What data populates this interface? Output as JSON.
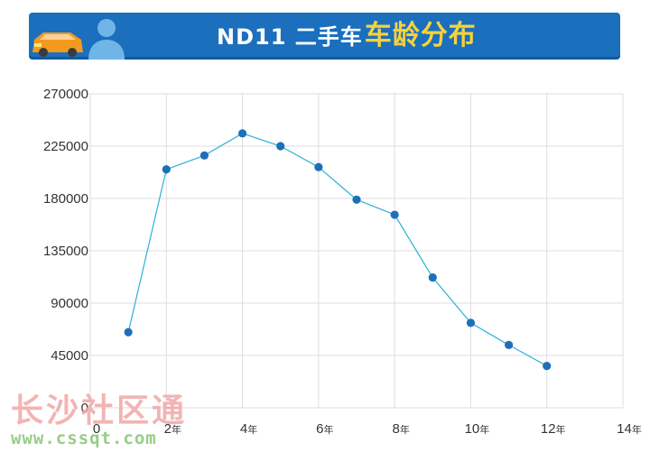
{
  "header": {
    "title_prefix": "ND11 二手车",
    "title_highlight": "车龄分布",
    "icon": "car-and-user-icon"
  },
  "colors": {
    "banner": "#1b6fbd",
    "highlight": "#f6d23b",
    "line": "#2ab0d6",
    "point": "#1d70b8"
  },
  "watermark": {
    "name": "长沙社区通",
    "url": "www.cssqt.com"
  },
  "chart_data": {
    "type": "line",
    "title": "",
    "xlabel": "",
    "ylabel": "",
    "x_unit": "年",
    "xlim": [
      0,
      14
    ],
    "ylim": [
      0,
      270000
    ],
    "x_ticks": [
      0,
      2,
      4,
      6,
      8,
      10,
      12,
      14
    ],
    "y_ticks": [
      0,
      45000,
      90000,
      135000,
      180000,
      225000,
      270000
    ],
    "grid": true,
    "legend": "none",
    "series": [
      {
        "x": [
          1,
          2,
          3,
          4,
          5,
          6,
          7,
          8,
          9,
          10,
          11,
          12
        ],
        "values": [
          65000,
          205000,
          217000,
          236000,
          225000,
          207000,
          179000,
          166000,
          112000,
          73000,
          54000,
          36000
        ]
      }
    ]
  }
}
